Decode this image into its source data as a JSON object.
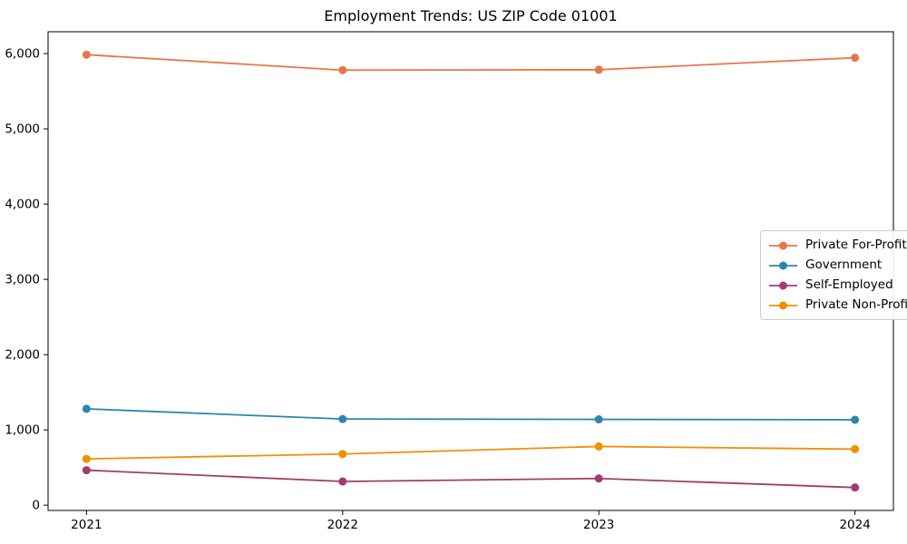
{
  "chart_data": {
    "type": "line",
    "title": "Employment Trends: US ZIP Code 01001",
    "x": [
      2021,
      2022,
      2023,
      2024
    ],
    "xtick_labels": [
      "2021",
      "2022",
      "2023",
      "2024"
    ],
    "yticks": [
      0,
      1000,
      2000,
      3000,
      4000,
      5000,
      6000
    ],
    "ytick_labels": [
      "0",
      "1,000",
      "2,000",
      "3,000",
      "4,000",
      "5,000",
      "6,000"
    ],
    "xlim": [
      2020.85,
      2024.15
    ],
    "ylim": [
      -70,
      6290
    ],
    "grid": false,
    "legend_position": "right",
    "xlabel": "",
    "ylabel": "",
    "series": [
      {
        "name": "Private For-Profit",
        "color": "#E8764B",
        "values": [
          5985,
          5780,
          5785,
          5945
        ]
      },
      {
        "name": "Government",
        "color": "#2E86AB",
        "values": [
          1280,
          1145,
          1140,
          1135
        ]
      },
      {
        "name": "Self-Employed",
        "color": "#A23B72",
        "values": [
          465,
          315,
          355,
          235
        ]
      },
      {
        "name": "Private Non-Profit",
        "color": "#F18F01",
        "values": [
          615,
          680,
          780,
          745
        ]
      }
    ]
  }
}
